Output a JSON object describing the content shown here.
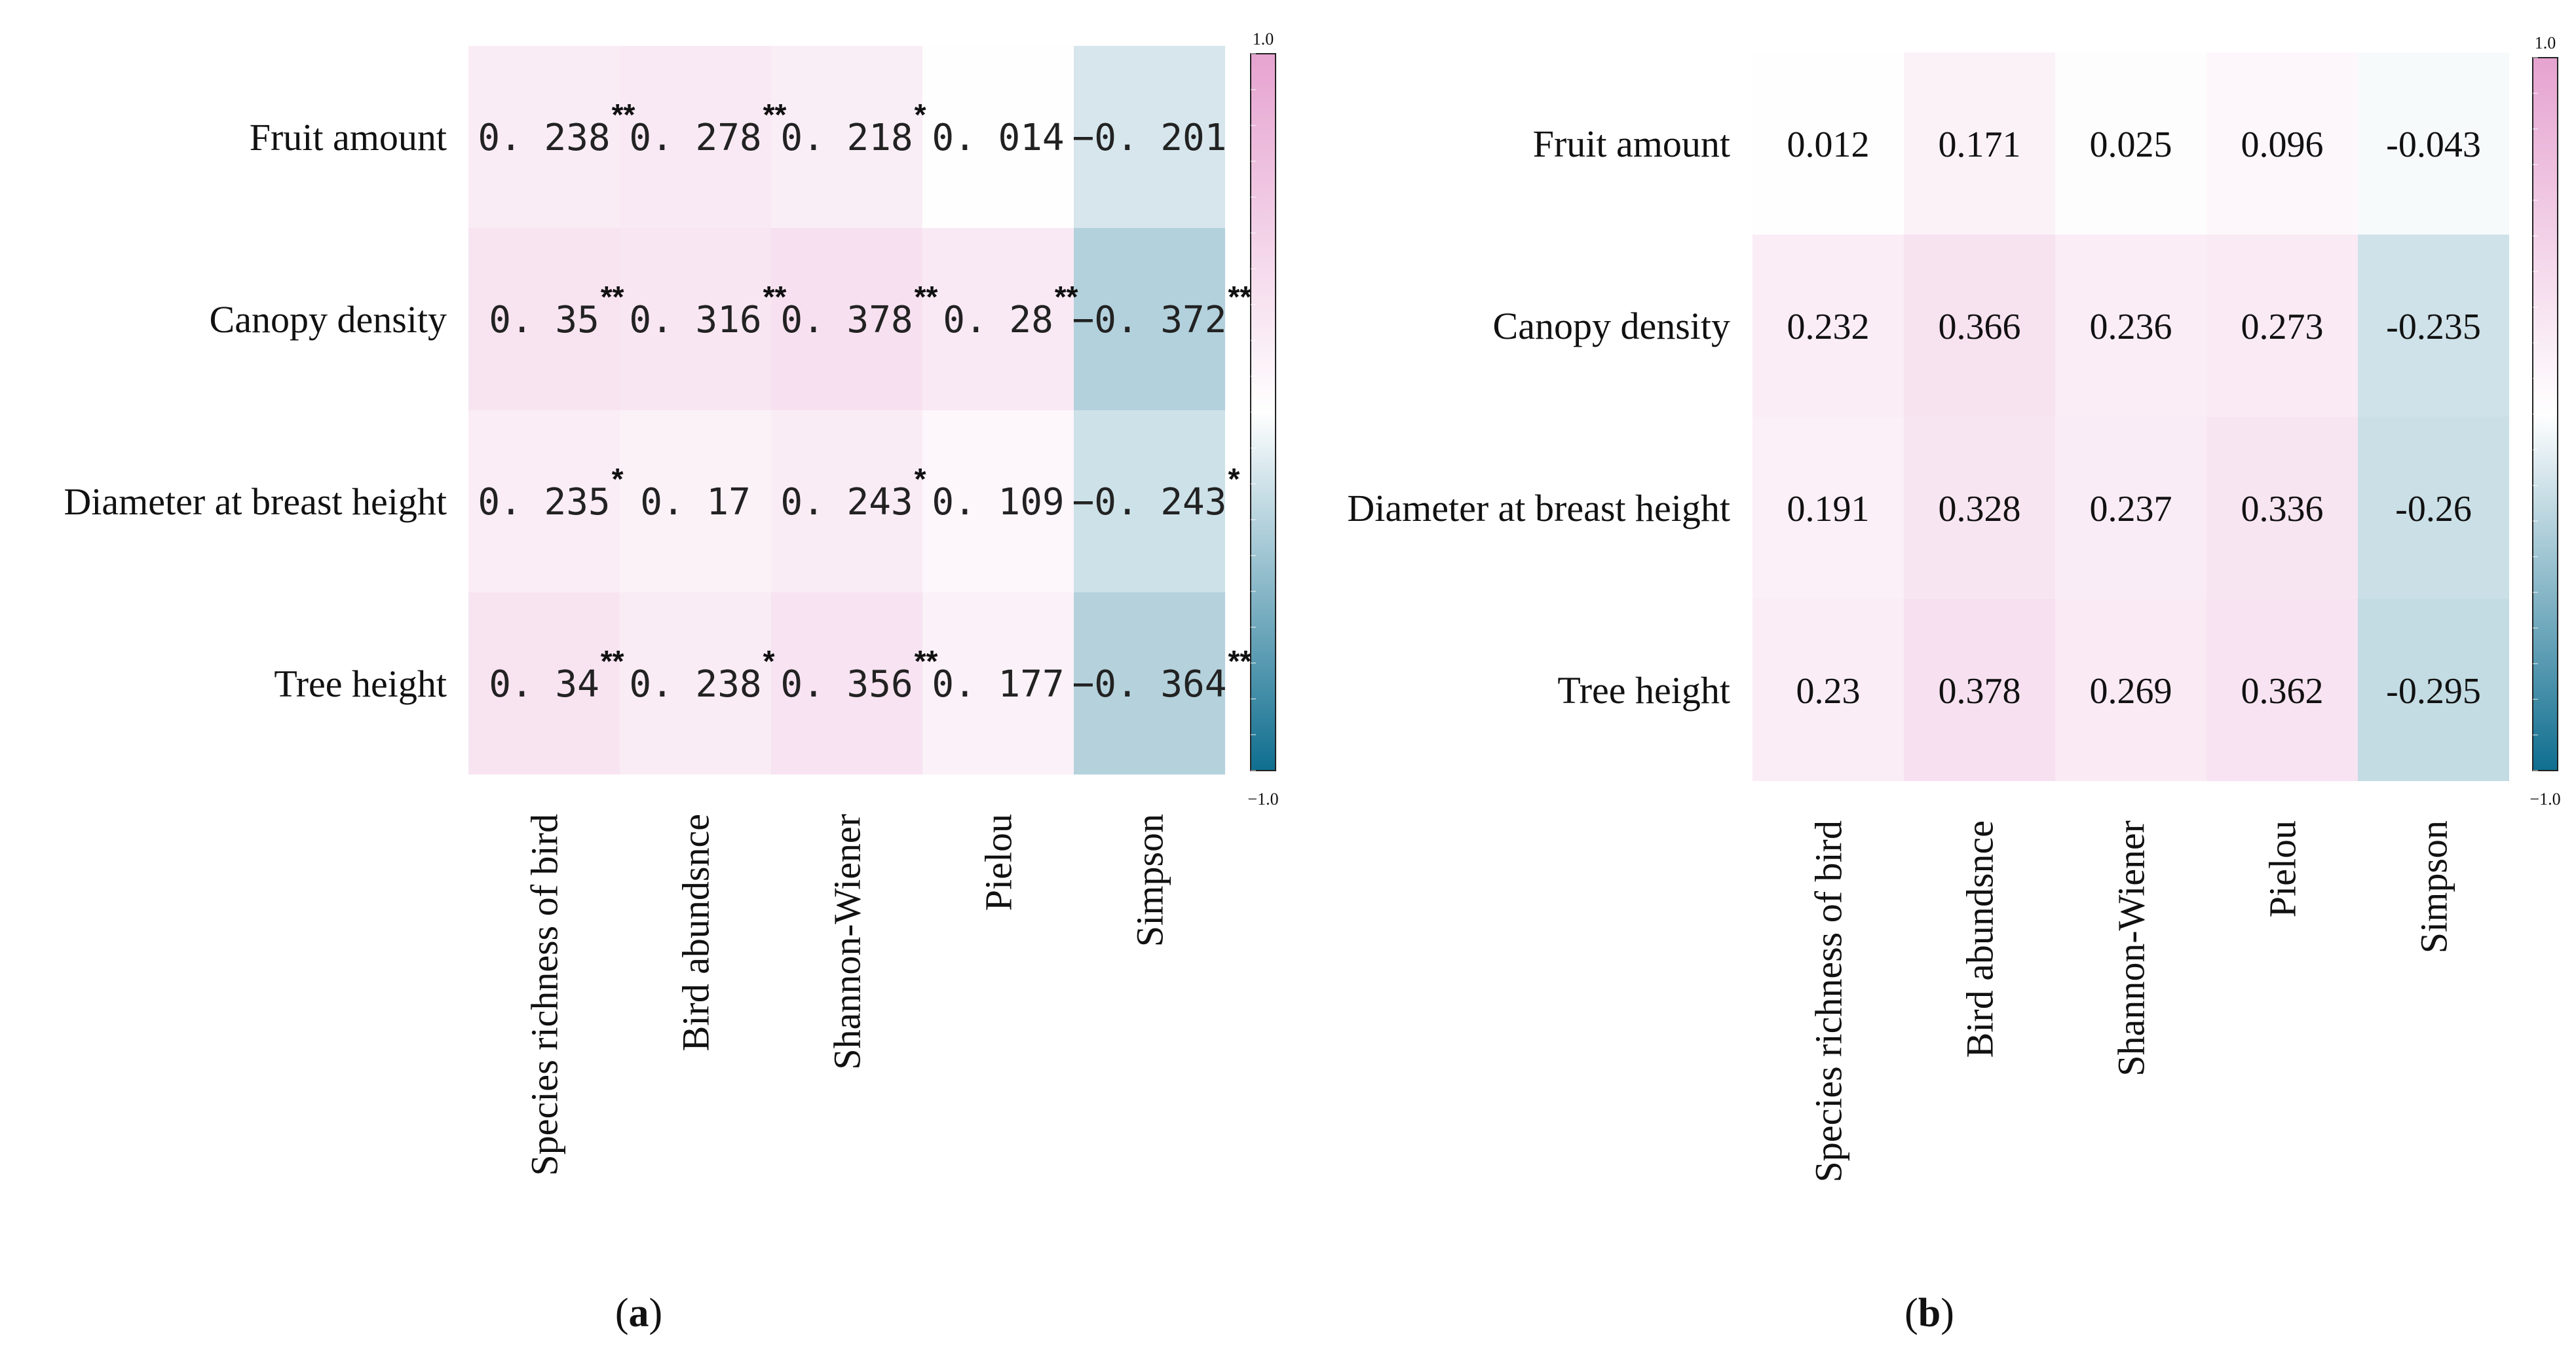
{
  "chart_data": [
    {
      "type": "heatmap",
      "panel_label": "a",
      "rows": [
        "Fruit amount",
        "Canopy density",
        "Diameter at breast height",
        "Tree height"
      ],
      "columns": [
        "Species richness of bird",
        "Bird abundsnce",
        "Shannon-Wiener",
        "Pielou",
        "Simpson"
      ],
      "values": [
        [
          0.238,
          0.278,
          0.218,
          0.014,
          -0.201
        ],
        [
          0.35,
          0.316,
          0.378,
          0.28,
          -0.372
        ],
        [
          0.235,
          0.17,
          0.243,
          0.109,
          -0.243
        ],
        [
          0.34,
          0.238,
          0.356,
          0.177,
          -0.364
        ]
      ],
      "labels": [
        [
          "0. 238",
          "0. 278",
          "0. 218",
          "0. 014",
          "−0. 201"
        ],
        [
          "0. 35",
          "0. 316",
          "0. 378",
          "0. 28",
          "−0. 372"
        ],
        [
          "0. 235",
          "0. 17",
          "0. 243",
          "0. 109",
          "−0. 243"
        ],
        [
          "0. 34",
          "0. 238",
          "0. 356",
          "0. 177",
          "−0. 364"
        ]
      ],
      "significance": [
        [
          "**",
          "**",
          "*",
          "",
          ""
        ],
        [
          "**",
          "**",
          "**",
          "**",
          "**"
        ],
        [
          "*",
          "",
          "*",
          "",
          "*"
        ],
        [
          "**",
          "*",
          "**",
          "",
          "**"
        ]
      ],
      "colorbar": {
        "max_label": "1.0",
        "min_label": "−1.0",
        "range": [
          -1,
          1
        ]
      }
    },
    {
      "type": "heatmap",
      "panel_label": "b",
      "rows": [
        "Fruit amount",
        "Canopy density",
        "Diameter at breast height",
        "Tree height"
      ],
      "columns": [
        "Species richness of bird",
        "Bird abundsnce",
        "Shannon-Wiener",
        "Pielou",
        "Simpson"
      ],
      "values": [
        [
          0.012,
          0.171,
          0.025,
          0.096,
          -0.043
        ],
        [
          0.232,
          0.366,
          0.236,
          0.273,
          -0.235
        ],
        [
          0.191,
          0.328,
          0.237,
          0.336,
          -0.26
        ],
        [
          0.23,
          0.378,
          0.269,
          0.362,
          -0.295
        ]
      ],
      "labels": [
        [
          "0.012",
          "0.171",
          "0.025",
          "0.096",
          "-0.043"
        ],
        [
          "0.232",
          "0.366",
          "0.236",
          "0.273",
          "-0.235"
        ],
        [
          "0.191",
          "0.328",
          "0.237",
          "0.336",
          "-0.26"
        ],
        [
          "0.23",
          "0.378",
          "0.269",
          "0.362",
          "-0.295"
        ]
      ],
      "significance": [
        [
          "",
          "",
          "",
          "",
          ""
        ],
        [
          "",
          "",
          "",
          "",
          ""
        ],
        [
          "",
          "",
          "",
          "",
          ""
        ],
        [
          "",
          "",
          "",
          "",
          ""
        ]
      ],
      "colorbar": {
        "max_label": "1.0",
        "min_label": "−1.0",
        "range": [
          -1,
          1
        ]
      }
    }
  ],
  "colors": {
    "positive": "#e6a3d0",
    "neutral": "#ffffff",
    "negative": "#0f6e8f"
  }
}
